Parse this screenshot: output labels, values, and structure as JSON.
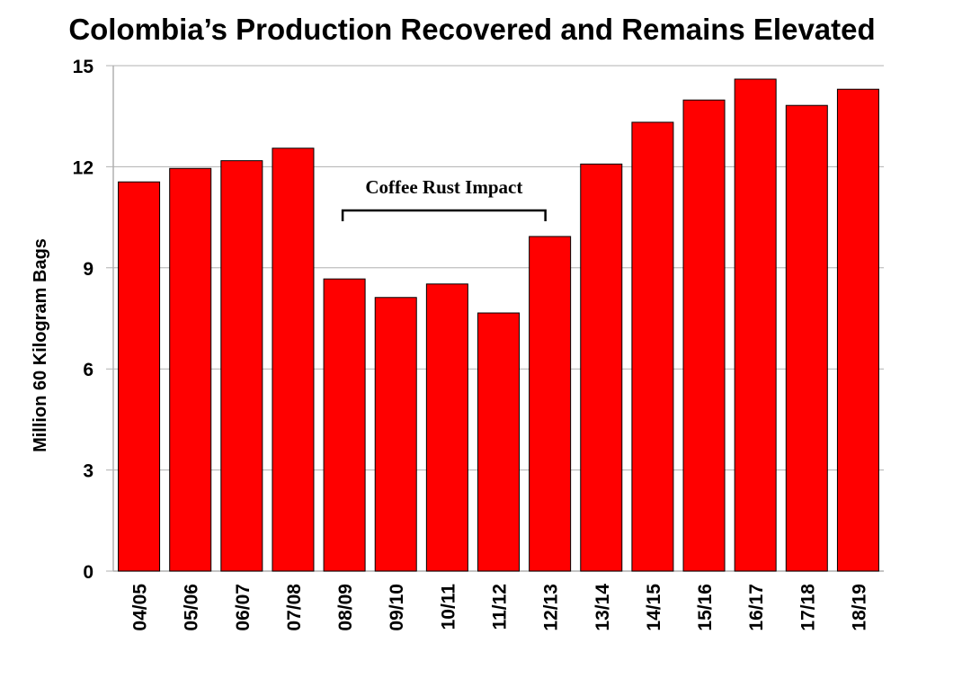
{
  "chart_data": {
    "type": "bar",
    "title": "Colombia’s Production Recovered and Remains Elevated",
    "xlabel": "",
    "ylabel": "Million 60 Kilogram Bags",
    "ylim": [
      0,
      15
    ],
    "yticks": [
      0,
      3,
      6,
      9,
      12,
      15
    ],
    "grid": true,
    "bar_color": "#ff0000",
    "categories": [
      "04/05",
      "05/06",
      "06/07",
      "07/08",
      "08/09",
      "09/10",
      "10/11",
      "11/12",
      "12/13",
      "13/14",
      "14/15",
      "15/16",
      "16/17",
      "17/18",
      "18/19"
    ],
    "values": [
      11.55,
      11.95,
      12.18,
      12.55,
      8.67,
      8.12,
      8.52,
      7.66,
      9.93,
      12.08,
      13.32,
      13.98,
      14.6,
      13.82,
      14.3
    ],
    "annotation": {
      "text": "Coffee Rust Impact",
      "from": "08/09",
      "to": "12/13"
    }
  }
}
